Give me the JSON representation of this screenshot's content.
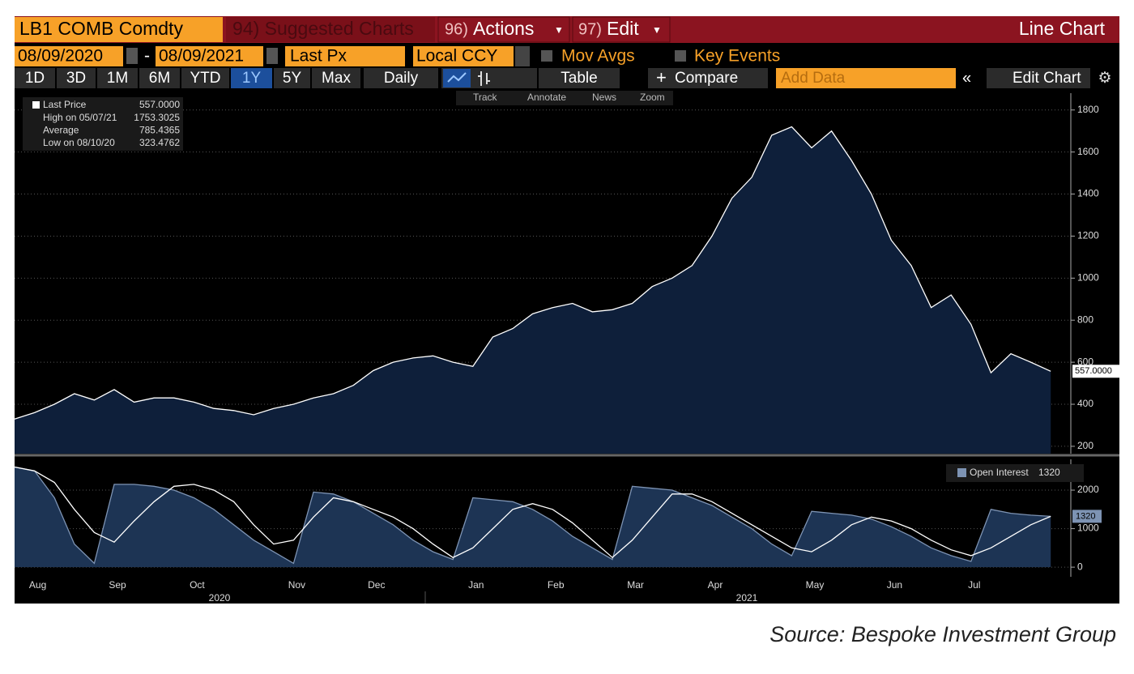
{
  "toolbar": {
    "ticker": "LB1 COMB Comdty",
    "suggested": "94) Suggested Charts",
    "actions_num": "96)",
    "actions": "Actions",
    "edit_num": "97)",
    "edit": "Edit",
    "chart_type": "Line Chart",
    "start_date": "08/09/2020",
    "dash": "-",
    "end_date": "08/09/2021",
    "field": "Last Px",
    "currency": "Local CCY",
    "mov_avgs": "Mov Avgs",
    "key_events": "Key Events",
    "periods": [
      "1D",
      "3D",
      "1M",
      "6M",
      "YTD",
      "1Y",
      "5Y",
      "Max"
    ],
    "active_period": "1Y",
    "frequency": "Daily",
    "table": "Table",
    "compare": "Compare",
    "add_data": "Add Data",
    "edit_chart": "Edit Chart",
    "tools": [
      "Track",
      "Annotate",
      "News",
      "Zoom"
    ]
  },
  "stats": [
    {
      "label": "Last Price",
      "value": "557.0000"
    },
    {
      "label": "High on 05/07/21",
      "value": "1753.3025"
    },
    {
      "label": "Average",
      "value": "785.4365"
    },
    {
      "label": "Low on 08/10/20",
      "value": "323.4762"
    }
  ],
  "years": [
    "2020",
    "2021"
  ],
  "source": "Source: Bespoke Investment Group",
  "chart_data": [
    {
      "type": "area",
      "categories": [
        null,
        "Aug",
        null,
        null,
        null,
        "Sep",
        null,
        null,
        null,
        "Oct",
        null,
        null,
        null,
        null,
        "Nov",
        null,
        null,
        null,
        "Dec",
        null,
        null,
        null,
        null,
        "Jan",
        null,
        null,
        null,
        "Feb",
        null,
        null,
        null,
        "Mar",
        null,
        null,
        null,
        "Apr",
        null,
        null,
        null,
        null,
        "May",
        null,
        null,
        null,
        "Jun",
        null,
        null,
        null,
        "Jul",
        null,
        null,
        null,
        null
      ],
      "series": [
        {
          "name": "Last Price",
          "color": "#ffffff",
          "fill": "#0e1f3a",
          "values": [
            330,
            360,
            400,
            450,
            420,
            470,
            410,
            430,
            430,
            410,
            380,
            370,
            350,
            380,
            400,
            430,
            450,
            490,
            560,
            600,
            620,
            630,
            600,
            580,
            720,
            760,
            830,
            860,
            880,
            840,
            850,
            880,
            960,
            1000,
            1060,
            1200,
            1380,
            1480,
            1680,
            1720,
            1620,
            1700,
            1560,
            1400,
            1180,
            1060,
            860,
            920,
            780,
            550,
            640,
            600,
            557
          ]
        }
      ],
      "ylim": [
        165,
        1880
      ],
      "yticks": [
        200,
        400,
        600,
        800,
        1000,
        1200,
        1400,
        1600,
        1800
      ],
      "grid": true
    },
    {
      "type": "area",
      "series": [
        {
          "name": "Open Interest",
          "legend_value": "1320",
          "color": "#7d93b3",
          "fill": "#1d3454",
          "values": [
            2600,
            2500,
            1800,
            600,
            100,
            2150,
            2150,
            2100,
            2000,
            1800,
            1500,
            1100,
            700,
            400,
            100,
            1950,
            1900,
            1700,
            1400,
            1100,
            700,
            400,
            200,
            1800,
            1750,
            1700,
            1500,
            1200,
            800,
            500,
            200,
            2100,
            2050,
            2000,
            1800,
            1600,
            1300,
            1000,
            600,
            300,
            1450,
            1400,
            1350,
            1250,
            1050,
            800,
            500,
            300,
            150,
            1500,
            1400,
            1350,
            1320
          ]
        },
        {
          "color": "#ffffff",
          "values": [
            2600,
            2500,
            2200,
            1500,
            900,
            650,
            1200,
            1700,
            2100,
            2150,
            2000,
            1700,
            1100,
            600,
            700,
            1300,
            1800,
            1700,
            1500,
            1300,
            1000,
            600,
            250,
            500,
            1000,
            1500,
            1650,
            1500,
            1150,
            700,
            250,
            700,
            1300,
            1900,
            1900,
            1700,
            1400,
            1100,
            800,
            500,
            400,
            700,
            1100,
            1300,
            1200,
            1000,
            700,
            450,
            300,
            500,
            800,
            1100,
            1320
          ]
        }
      ],
      "ylim": [
        -250,
        2800
      ],
      "yticks": [
        0,
        1000,
        2000
      ],
      "grid": true
    }
  ]
}
